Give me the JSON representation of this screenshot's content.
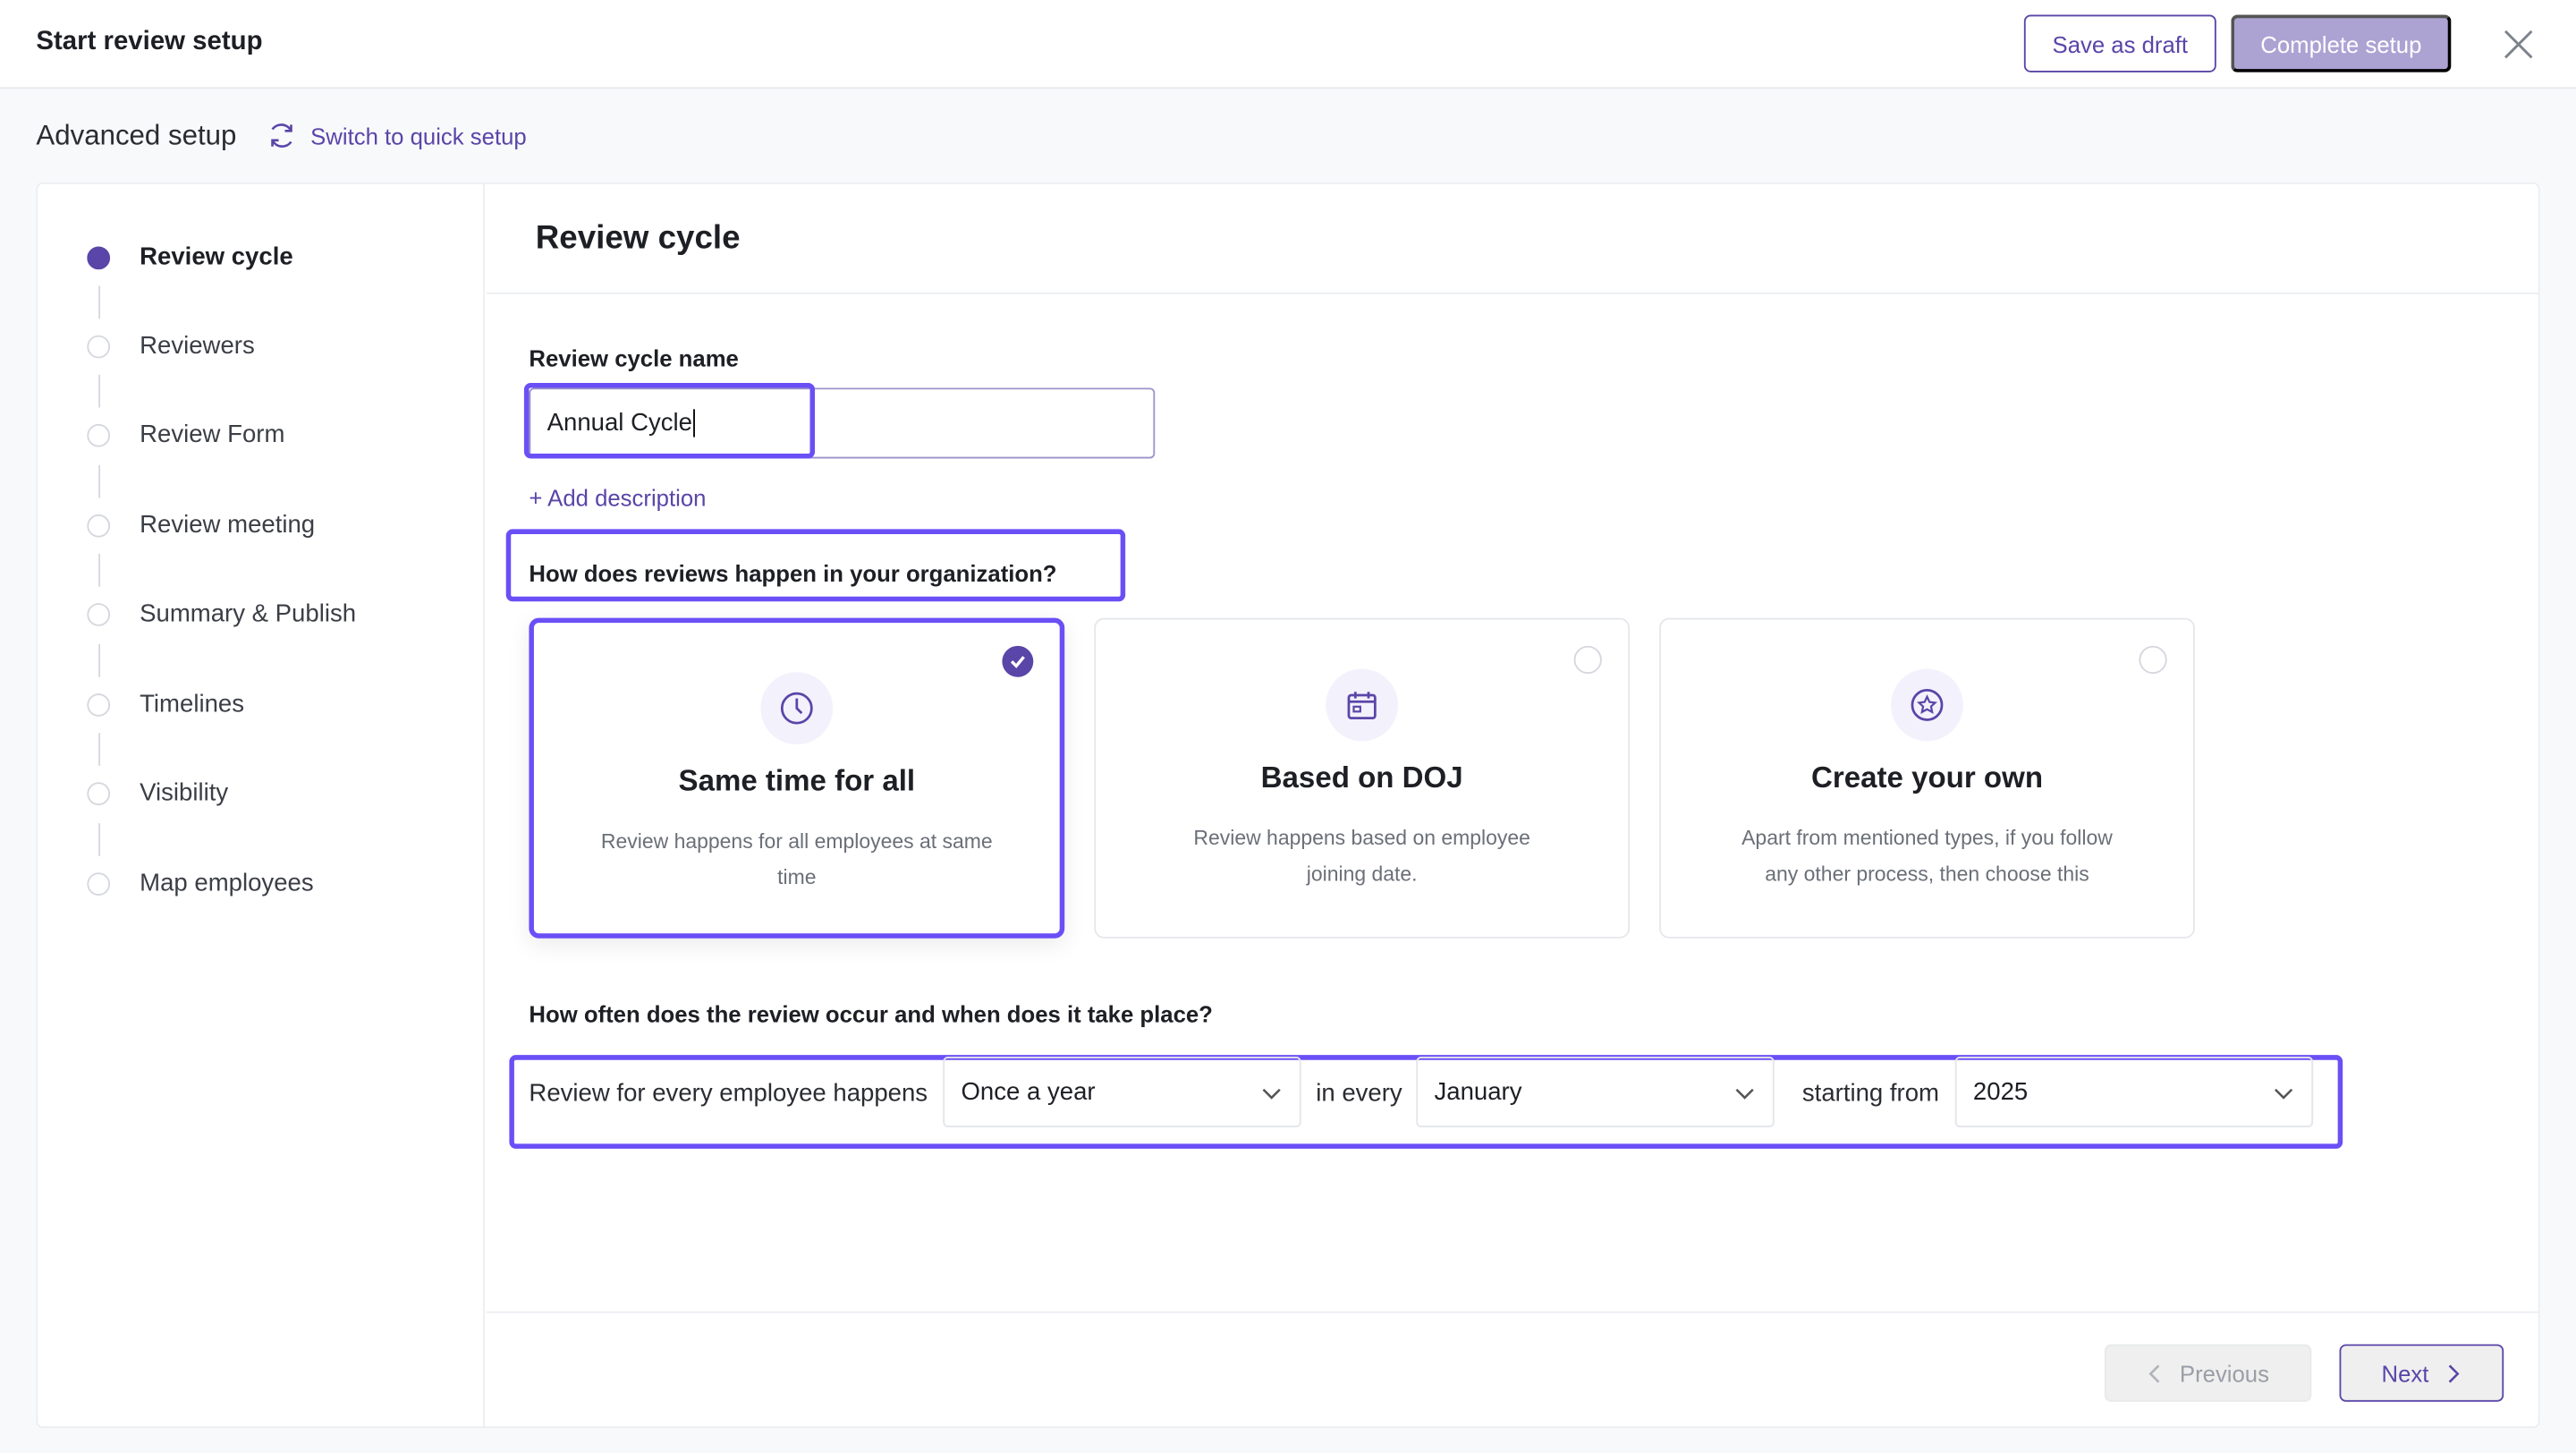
{
  "header": {
    "title": "Start review setup",
    "save_draft": "Save as draft",
    "complete_setup": "Complete setup"
  },
  "subheader": {
    "mode": "Advanced setup",
    "switch_label": "Switch to quick setup"
  },
  "sidebar": {
    "steps": [
      {
        "label": "Review cycle",
        "active": true
      },
      {
        "label": "Reviewers"
      },
      {
        "label": "Review Form"
      },
      {
        "label": "Review meeting"
      },
      {
        "label": "Summary & Publish"
      },
      {
        "label": "Timelines"
      },
      {
        "label": "Visibility"
      },
      {
        "label": "Map employees"
      }
    ]
  },
  "main": {
    "title": "Review cycle",
    "name_label": "Review cycle name",
    "name_value": "Annual Cycle",
    "add_description": "+ Add description",
    "question1": "How does reviews happen in your organization?",
    "cards": [
      {
        "icon": "clock-icon",
        "title": "Same time for all",
        "desc": "Review happens for all employees at same time",
        "selected": true
      },
      {
        "icon": "calendar-icon",
        "title": "Based on DOJ",
        "desc": "Review happens based on employee joining date.",
        "selected": false
      },
      {
        "icon": "star-icon",
        "title": "Create your own",
        "desc": "Apart from mentioned types, if you follow any other process, then choose this",
        "selected": false
      }
    ],
    "question2": "How often does the review occur and when does it take place?",
    "freq": {
      "prefix": "Review for every employee happens",
      "frequency": "Once a year",
      "in_every": "in every",
      "month": "January",
      "starting_from": "starting from",
      "year": "2025"
    }
  },
  "footer": {
    "previous": "Previous",
    "next": "Next"
  },
  "colors": {
    "accent": "#5a45a8",
    "highlight": "#6b4ff6",
    "disabled_button": "#aca3d3"
  }
}
